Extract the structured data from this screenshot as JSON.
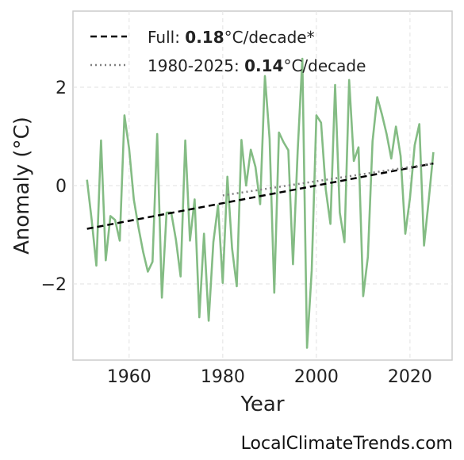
{
  "chart_data": {
    "type": "line",
    "xlabel": "Year",
    "ylabel": "Anomaly (°C)",
    "xlim": [
      1948,
      2029
    ],
    "ylim": [
      -3.55,
      3.55
    ],
    "x_ticks": [
      1960,
      1980,
      2000,
      2020
    ],
    "y_ticks": [
      -2,
      0,
      2
    ],
    "y_tick_labels": [
      "−2",
      "0",
      "2"
    ],
    "grid": true,
    "legend_position": "top-left",
    "series": [
      {
        "role": "anomaly",
        "color": "#84bc84",
        "x": [
          1951,
          1952,
          1953,
          1954,
          1955,
          1956,
          1957,
          1958,
          1959,
          1960,
          1961,
          1962,
          1963,
          1964,
          1965,
          1966,
          1967,
          1968,
          1969,
          1970,
          1971,
          1972,
          1973,
          1974,
          1975,
          1976,
          1977,
          1978,
          1979,
          1980,
          1981,
          1982,
          1983,
          1984,
          1985,
          1986,
          1987,
          1988,
          1989,
          1990,
          1991,
          1992,
          1993,
          1994,
          1995,
          1996,
          1997,
          1998,
          1999,
          2000,
          2001,
          2002,
          2003,
          2004,
          2005,
          2006,
          2007,
          2008,
          2009,
          2010,
          2011,
          2012,
          2013,
          2014,
          2015,
          2016,
          2017,
          2018,
          2019,
          2020,
          2021,
          2022,
          2023,
          2024,
          2025
        ],
        "y": [
          0.12,
          -0.7,
          -1.63,
          0.92,
          -1.52,
          -0.62,
          -0.7,
          -1.12,
          1.43,
          0.75,
          -0.28,
          -0.85,
          -1.35,
          -1.75,
          -1.55,
          1.05,
          -2.28,
          -0.55,
          -0.55,
          -1.1,
          -1.85,
          0.92,
          -1.12,
          -0.28,
          -2.68,
          -0.98,
          -2.75,
          -1.15,
          -0.4,
          -1.98,
          0.18,
          -1.28,
          -2.05,
          0.93,
          0.0,
          0.73,
          0.38,
          -0.38,
          2.23,
          0.95,
          -2.18,
          1.08,
          0.88,
          0.72,
          -1.6,
          0.7,
          2.58,
          -3.3,
          -1.73,
          1.43,
          1.28,
          -0.08,
          -0.78,
          2.05,
          -0.55,
          -1.15,
          2.15,
          0.5,
          0.78,
          -2.25,
          -1.45,
          0.9,
          1.8,
          1.45,
          1.05,
          0.55,
          1.2,
          0.6,
          -0.98,
          -0.25,
          0.82,
          1.25,
          -1.22,
          -0.3,
          0.68
        ]
      },
      {
        "role": "trend-full",
        "style": "dashed",
        "color": "#000000",
        "x": [
          1951,
          2025
        ],
        "y": [
          -0.88,
          0.45
        ]
      },
      {
        "role": "trend-1980-2025",
        "style": "dotted",
        "color": "#808080",
        "x": [
          1980,
          2025
        ],
        "y": [
          -0.2,
          0.45
        ]
      }
    ],
    "legend": [
      {
        "label_prefix": "Full: ",
        "value": "0.18",
        "label_suffix": "°C/decade*",
        "style": "dashed",
        "color": "#000000"
      },
      {
        "label_prefix": "1980-2025: ",
        "value": "0.14",
        "label_suffix": "°C/decade",
        "style": "dotted",
        "color": "#808080"
      }
    ]
  },
  "credit": "LocalClimateTrends.com"
}
